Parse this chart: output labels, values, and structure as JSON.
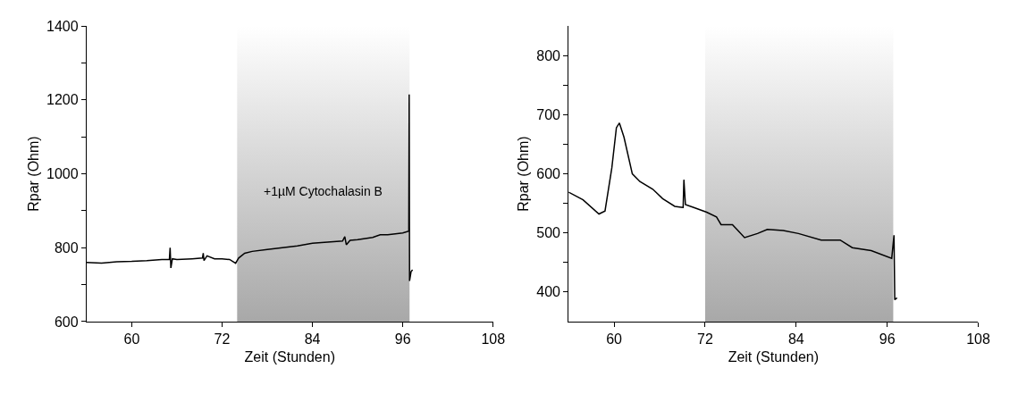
{
  "chart_data": [
    {
      "type": "line",
      "xlabel": "Zeit (Stunden)",
      "ylabel": "Rpar (Ohm)",
      "xlim": [
        54,
        108
      ],
      "ylim": [
        600,
        1400
      ],
      "xticks": [
        60,
        72,
        84,
        96,
        108
      ],
      "yticks": [
        600,
        {
          "value": 700,
          "label": null
        },
        800,
        {
          "value": 900,
          "label": null
        },
        1000,
        {
          "value": 1100,
          "label": null
        },
        1200,
        {
          "value": 1300,
          "label": null
        },
        1400
      ],
      "series": [
        {
          "color": "#000000",
          "x": [
            54,
            56,
            58,
            60,
            62,
            64,
            65,
            65.1,
            65.2,
            65.4,
            66,
            68,
            69.4,
            69.5,
            69.6,
            70,
            71,
            72,
            73,
            73.8,
            74.2,
            75,
            76,
            78,
            80,
            82,
            84,
            86,
            88,
            88.3,
            88.5,
            89,
            90,
            92,
            93,
            94,
            96,
            96.8,
            96.85,
            96.9,
            97.1,
            97.3
          ],
          "values": [
            760,
            758,
            762,
            763,
            765,
            768,
            768,
            800,
            745,
            770,
            768,
            770,
            772,
            785,
            765,
            778,
            770,
            770,
            768,
            758,
            772,
            785,
            790,
            795,
            800,
            805,
            812,
            815,
            818,
            830,
            808,
            820,
            822,
            828,
            835,
            835,
            840,
            845,
            1215,
            710,
            735,
            740
          ]
        }
      ],
      "bands": [
        {
          "axis": "x",
          "from": 74,
          "to": 96.9,
          "label": "+1µM Cytochalasin B",
          "color": "#a8a8a8"
        }
      ]
    },
    {
      "type": "line",
      "xlabel": "Zeit (Stunden)",
      "ylabel": "Rpar (Ohm)",
      "xlim": [
        54,
        108
      ],
      "ylim": [
        350,
        850
      ],
      "xticks": [
        60,
        72,
        84,
        96,
        108
      ],
      "yticks": [
        400,
        {
          "value": 450,
          "label": null
        },
        500,
        {
          "value": 550,
          "label": null
        },
        600,
        {
          "value": 650,
          "label": null
        },
        700,
        {
          "value": 750,
          "label": null
        },
        800
      ],
      "series": [
        {
          "color": "#000000",
          "x": [
            54.0,
            55.9,
            58.0,
            58.8,
            59.7,
            60.3,
            60.7,
            61.3,
            62.4,
            63.4,
            65.1,
            66.4,
            68.0,
            69.1,
            69.2,
            69.4,
            70.5,
            72.2,
            73.5,
            74.1,
            75.6,
            77.2,
            78.9,
            80.2,
            82.3,
            84.3,
            87.3,
            89.8,
            91.4,
            93.9,
            96.6,
            96.9,
            97.0,
            97.3
          ],
          "values": [
            569,
            556,
            532,
            537,
            610,
            678,
            686,
            662,
            600,
            587,
            574,
            558,
            545,
            543,
            590,
            548,
            543,
            535,
            527,
            514,
            514,
            492,
            499,
            506,
            504,
            499,
            488,
            488,
            475,
            470,
            457,
            496,
            387,
            390
          ]
        }
      ],
      "bands": [
        {
          "axis": "x",
          "from": 72,
          "to": 96.8,
          "color": "#a8a8a8"
        }
      ]
    }
  ]
}
